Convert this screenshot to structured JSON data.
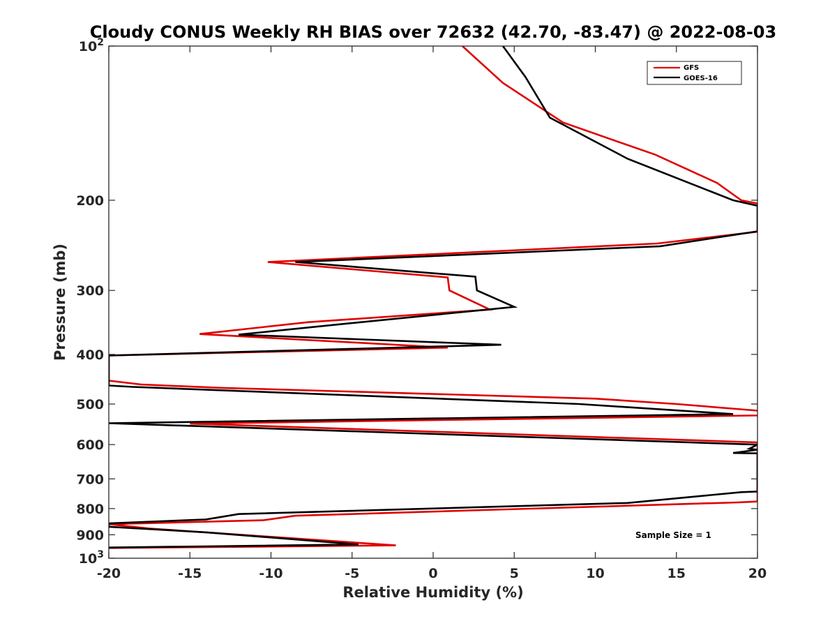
{
  "chart_data": {
    "type": "line",
    "title": "Cloudy CONUS Weekly RH BIAS over 72632 (42.70, -83.47) @ 2022-08-03",
    "xlabel": "Relative Humidity (%)",
    "ylabel": "Pressure (mb)",
    "xlim": [
      -20,
      20
    ],
    "ylim": [
      100,
      1000
    ],
    "y_scale": "log",
    "y_reversed": true,
    "x_ticks": [
      "-20",
      "-15",
      "-10",
      "-5",
      "0",
      "5",
      "10",
      "15",
      "20"
    ],
    "y_ticks": [
      {
        "value": 100,
        "label": "10",
        "sup": "2"
      },
      {
        "value": 200,
        "label": "200"
      },
      {
        "value": 300,
        "label": "300"
      },
      {
        "value": 400,
        "label": "400"
      },
      {
        "value": 500,
        "label": "500"
      },
      {
        "value": 600,
        "label": "600"
      },
      {
        "value": 700,
        "label": "700"
      },
      {
        "value": 800,
        "label": "800"
      },
      {
        "value": 900,
        "label": "900"
      },
      {
        "value": 1000,
        "label": "10",
        "sup": "3"
      }
    ],
    "grid": false,
    "legend_position": "top-right",
    "series": [
      {
        "name": "GFS",
        "color": "#e00000",
        "points": [
          [
            1.8,
            100
          ],
          [
            4.3,
            118
          ],
          [
            8.0,
            141
          ],
          [
            13.7,
            163
          ],
          [
            17.5,
            185
          ],
          [
            19.0,
            200
          ],
          [
            20.0,
            203
          ],
          [
            20.2,
            230
          ],
          [
            13.8,
            243
          ],
          [
            -10.2,
            264
          ],
          [
            0.9,
            283
          ],
          [
            1.0,
            300
          ],
          [
            3.5,
            327
          ],
          [
            -7.7,
            346
          ],
          [
            -14.4,
            365
          ],
          [
            0.9,
            388
          ],
          [
            -20.0,
            402
          ],
          [
            -20.0,
            450
          ],
          [
            -18.0,
            458
          ],
          [
            -13.0,
            465
          ],
          [
            10.0,
            488
          ],
          [
            15.0,
            500
          ],
          [
            20.0,
            515
          ],
          [
            20.5,
            526
          ],
          [
            -15.0,
            546
          ],
          [
            20.0,
            594
          ],
          [
            20.0,
            775
          ],
          [
            18.8,
            778
          ],
          [
            -8.5,
            826
          ],
          [
            -10.5,
            843
          ],
          [
            -20.0,
            858
          ],
          [
            -17.5,
            875
          ],
          [
            -2.3,
            944
          ],
          [
            -20.0,
            955
          ]
        ]
      },
      {
        "name": "GOES-16",
        "color": "#000000",
        "points": [
          [
            4.3,
            100
          ],
          [
            5.7,
            115
          ],
          [
            7.2,
            138
          ],
          [
            12.0,
            166
          ],
          [
            18.5,
            200
          ],
          [
            20.0,
            205
          ],
          [
            20.0,
            230
          ],
          [
            14.0,
            246
          ],
          [
            -8.5,
            264
          ],
          [
            2.6,
            282
          ],
          [
            2.7,
            300
          ],
          [
            5.0,
            323
          ],
          [
            -6.0,
            350
          ],
          [
            -12.0,
            366
          ],
          [
            4.2,
            383
          ],
          [
            -20.0,
            402
          ],
          [
            -20.0,
            460
          ],
          [
            -18.5,
            463
          ],
          [
            9.0,
            500
          ],
          [
            18.5,
            523
          ],
          [
            -20.0,
            545
          ],
          [
            20.0,
            600
          ],
          [
            19.5,
            611
          ],
          [
            20.0,
            614
          ],
          [
            18.5,
            623
          ],
          [
            20.0,
            624
          ],
          [
            20.0,
            741
          ],
          [
            19.0,
            743
          ],
          [
            12.0,
            780
          ],
          [
            -12.0,
            820
          ],
          [
            -14.0,
            840
          ],
          [
            -20.0,
            855
          ],
          [
            -20.0,
            868
          ],
          [
            -14.0,
            890
          ],
          [
            -4.6,
            940
          ],
          [
            -20.0,
            953
          ]
        ]
      }
    ],
    "annotation": "Sample Size = 1"
  }
}
